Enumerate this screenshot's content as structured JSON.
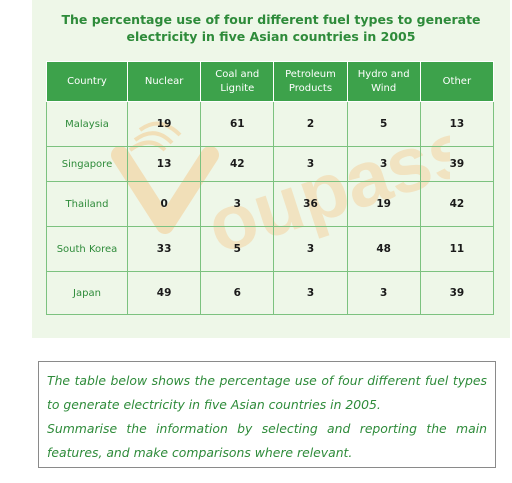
{
  "title": "The percentage use of four different fuel types to generate electricity in five Asian countries in 2005",
  "watermark": "Youpass",
  "chart_data": {
    "type": "table",
    "columns": [
      "Country",
      "Nuclear",
      "Coal and Lignite",
      "Petroleum Products",
      "Hydro and Wind",
      "Other"
    ],
    "rows": [
      [
        "Malaysia",
        "19",
        "61",
        "2",
        "5",
        "13"
      ],
      [
        "Singapore",
        "13",
        "42",
        "3",
        "3",
        "39"
      ],
      [
        "Thailand",
        "0",
        "3",
        "36",
        "19",
        "42"
      ],
      [
        "South Korea",
        "33",
        "5",
        "3",
        "48",
        "11"
      ],
      [
        "Japan",
        "49",
        "6",
        "3",
        "3",
        "39"
      ]
    ]
  },
  "task": {
    "line1": "The table below shows the percentage use of four different fuel types to generate electricity in five Asian countries in 2005.",
    "line2": "Summarise the information by selecting and reporting the main features, and make comparisons where relevant."
  },
  "colors": {
    "accent": "#3da24b",
    "title": "#2e8b3a",
    "panel": "#eef7e8",
    "watermark": "#f3d7a8"
  }
}
